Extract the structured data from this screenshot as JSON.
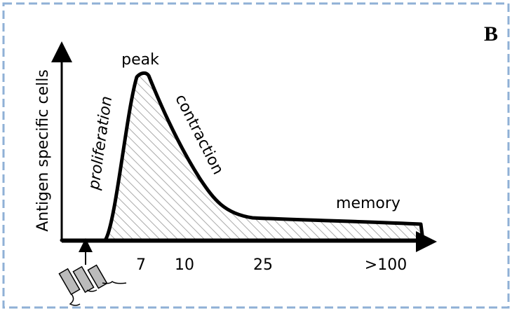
{
  "panel_label": "B",
  "y_axis_label": "Antigen specific cells",
  "phases": {
    "peak": "peak",
    "proliferation": "proliferation",
    "contraction": "contraction",
    "memory": "memory"
  },
  "x_labels": [
    "7",
    "10",
    "25",
    ">100"
  ]
}
